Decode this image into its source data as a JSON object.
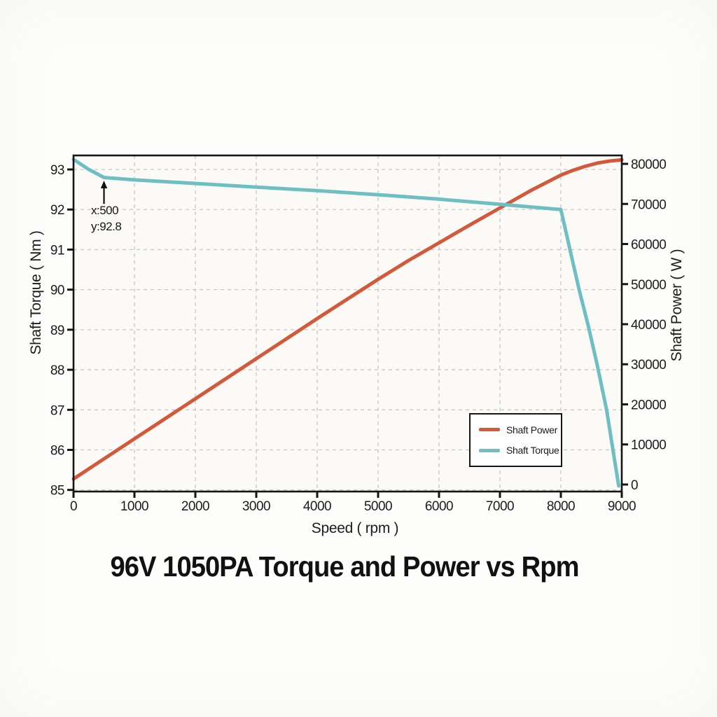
{
  "chart_data": {
    "type": "line",
    "title": "96V 1050PA Torque and Power vs Rpm",
    "xlabel": "Speed ( rpm )",
    "ylabel_left": "Shaft Torque ( Nm )",
    "ylabel_right": "Shaft Power ( W )",
    "xlim": [
      0,
      9000
    ],
    "ylim_left": [
      84.96,
      93.35
    ],
    "ylim_right": [
      -1750,
      82100
    ],
    "x_ticks": [
      0,
      1000,
      2000,
      3000,
      4000,
      5000,
      6000,
      7000,
      8000,
      9000
    ],
    "y_ticks_left": [
      85,
      86,
      87,
      88,
      89,
      90,
      91,
      92,
      93
    ],
    "y_ticks_right": [
      0,
      10000,
      20000,
      30000,
      40000,
      50000,
      60000,
      70000,
      80000
    ],
    "grid": "dashed",
    "legend_position": "lower-right",
    "series": [
      {
        "name": "Shaft Power",
        "axis": "right",
        "color": "#d2593a",
        "points": [
          [
            0,
            1400
          ],
          [
            500,
            6400
          ],
          [
            1000,
            11400
          ],
          [
            1500,
            16400
          ],
          [
            2000,
            21400
          ],
          [
            2500,
            26400
          ],
          [
            3000,
            31400
          ],
          [
            3500,
            36400
          ],
          [
            4000,
            41400
          ],
          [
            4500,
            46300
          ],
          [
            5000,
            51200
          ],
          [
            5500,
            55900
          ],
          [
            6000,
            60300
          ],
          [
            6500,
            64700
          ],
          [
            7000,
            69000
          ],
          [
            7500,
            73300
          ],
          [
            8000,
            77200
          ],
          [
            8200,
            78400
          ],
          [
            8400,
            79400
          ],
          [
            8600,
            80200
          ],
          [
            8800,
            80700
          ],
          [
            9000,
            81000
          ]
        ]
      },
      {
        "name": "Shaft Torque",
        "axis": "left",
        "color": "#6ebfc3",
        "points": [
          [
            0,
            93.25
          ],
          [
            250,
            93.0
          ],
          [
            500,
            92.8
          ],
          [
            1000,
            92.74
          ],
          [
            2000,
            92.65
          ],
          [
            3000,
            92.56
          ],
          [
            4000,
            92.47
          ],
          [
            5000,
            92.37
          ],
          [
            6000,
            92.26
          ],
          [
            7000,
            92.13
          ],
          [
            8000,
            92.0
          ],
          [
            8150,
            91.0
          ],
          [
            8300,
            90.0
          ],
          [
            8450,
            89.1
          ],
          [
            8600,
            88.1
          ],
          [
            8750,
            87.0
          ],
          [
            8950,
            85.1
          ]
        ]
      }
    ],
    "annotation": {
      "label_x": "x:500",
      "label_y": "y:92.8",
      "x": 500,
      "arrow_tip_y": 92.72,
      "arrow_tail_y": 92.14
    }
  },
  "colors": {
    "power": "#d2593a",
    "torque": "#6ebfc3",
    "grid": "#c7c7c7",
    "spine": "#151515",
    "text": "#1c1c1c",
    "plot_background": "#fbfaf7"
  }
}
